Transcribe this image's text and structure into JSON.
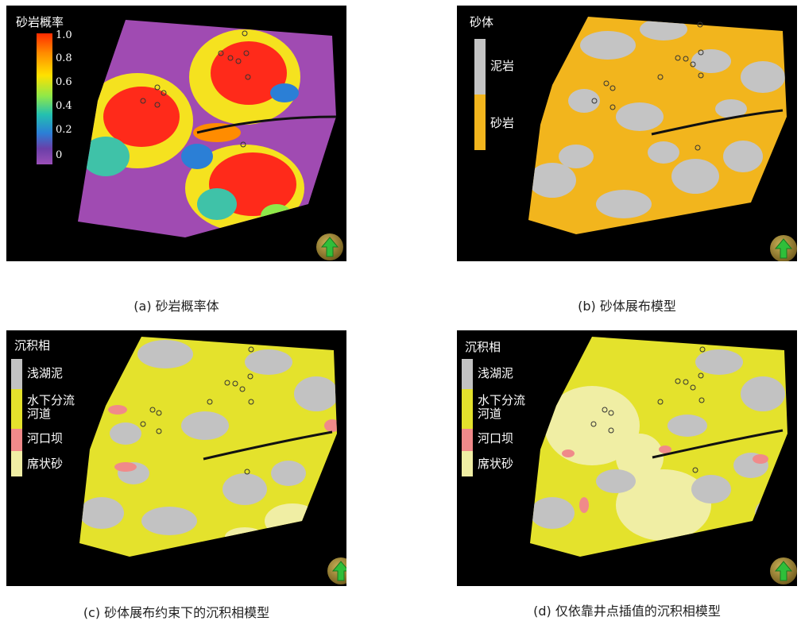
{
  "figure": {
    "panels": [
      {
        "id": "a",
        "caption": "(a) 砂岩概率体",
        "legend": {
          "title": "砂岩概率",
          "ticks": [
            "1.0",
            "0.8",
            "0.6",
            "0.4",
            "0.2",
            "0"
          ],
          "colormap": [
            "#ff2a00",
            "#ff8c00",
            "#ffe100",
            "#8ee84a",
            "#23c0b0",
            "#2b7fd6",
            "#6a3fa8",
            "#9b4fb8"
          ]
        },
        "colors": {
          "background": "#a04bb2",
          "high": "#ff2a1a",
          "mid": "#f5e21f",
          "low": "#3fc2a8"
        }
      },
      {
        "id": "b",
        "caption": "(b) 砂体展布模型",
        "legend": {
          "title": "砂体",
          "categories": [
            {
              "label": "泥岩",
              "color": "#c4c4c4"
            },
            {
              "label": "砂岩",
              "color": "#f2b51d"
            }
          ]
        }
      },
      {
        "id": "c",
        "caption": "(c) 砂体展布约束下的沉积相模型",
        "legend": {
          "title": "沉积相",
          "categories": [
            {
              "label": "浅湖泥",
              "color": "#c2c2c2"
            },
            {
              "label": "水下分流",
              "color": "#e4e22c"
            },
            {
              "label": "河道",
              "color": "#e4e22c"
            },
            {
              "label": "河口坝",
              "color": "#f08a8a"
            },
            {
              "label": "席状砂",
              "color": "#f0eea4"
            }
          ]
        }
      },
      {
        "id": "d",
        "caption": "(d) 仅依靠井点插值的沉积相模型",
        "legend": {
          "title": "沉积相",
          "categories": [
            {
              "label": "浅湖泥",
              "color": "#c2c2c2"
            },
            {
              "label": "水下分流",
              "color": "#e4e22c"
            },
            {
              "label": "河道",
              "color": "#e4e22c"
            },
            {
              "label": "河口坝",
              "color": "#f08a8a"
            },
            {
              "label": "席状砂",
              "color": "#f0eea4"
            }
          ]
        }
      }
    ]
  }
}
